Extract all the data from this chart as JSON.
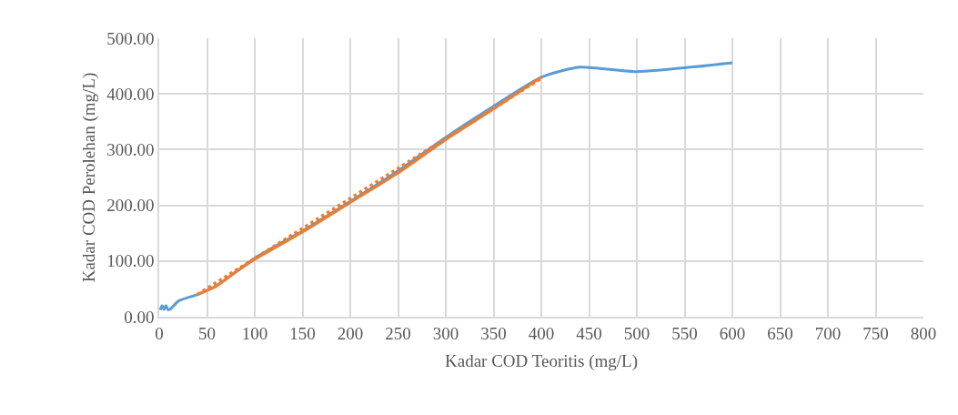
{
  "chart_data": {
    "type": "line",
    "xlabel": "Kadar COD Teoritis (mg/L)",
    "ylabel": "Kadar COD Perolehan (mg/L)",
    "xlim": [
      0,
      800
    ],
    "xticks": [
      0,
      50,
      100,
      150,
      200,
      250,
      300,
      350,
      400,
      450,
      500,
      550,
      600,
      650,
      700,
      750,
      800
    ],
    "ylim": [
      0,
      500
    ],
    "yticks": [
      {
        "value": 0,
        "label": "0.00"
      },
      {
        "value": 100,
        "label": "100.00"
      },
      {
        "value": 200,
        "label": "200.00"
      },
      {
        "value": 300,
        "label": "300.00"
      },
      {
        "value": 400,
        "label": "400.00"
      },
      {
        "value": 500,
        "label": "500.00"
      }
    ],
    "grid": true,
    "marker": "none",
    "series": [
      {
        "color": "#5b9bd5",
        "line_style": "solid",
        "x": [
          1,
          3,
          5,
          7,
          9,
          12,
          20,
          40,
          60,
          100,
          150,
          200,
          250,
          300,
          350,
          400,
          440,
          500,
          600
        ],
        "values": [
          12,
          20,
          13,
          20,
          13,
          14,
          28,
          40,
          56,
          105,
          154,
          207,
          262,
          322,
          378,
          430,
          448,
          440,
          456
        ]
      },
      {
        "color": "#ed7d31",
        "line_style": "solid",
        "x": [
          40,
          60,
          80,
          100,
          150,
          200,
          250,
          300,
          350,
          400
        ],
        "values": [
          40,
          55,
          80,
          103,
          152,
          205,
          258,
          318,
          373,
          430
        ]
      },
      {
        "color": "#ed7d31",
        "line_style": "dotted",
        "x": [
          40,
          400
        ],
        "values": [
          40,
          428
        ]
      }
    ]
  }
}
